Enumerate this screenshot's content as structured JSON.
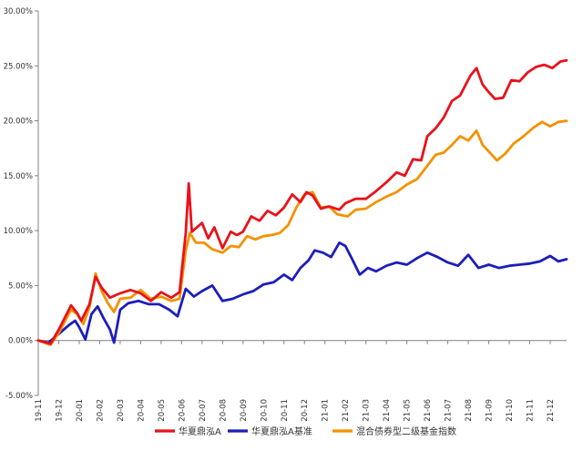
{
  "chart_data": {
    "type": "line",
    "title": "",
    "xlabel": "",
    "ylabel": "",
    "ylim": [
      -5,
      30
    ],
    "y_ticks": [
      -5,
      0,
      5,
      10,
      15,
      20,
      25,
      30
    ],
    "y_tick_format": "percent_2dp",
    "grid": false,
    "legend_position": "bottom",
    "x_tick_labels": [
      "19-11",
      "19-12",
      "20-01",
      "20-02",
      "20-03",
      "20-04",
      "20-05",
      "20-06",
      "20-07",
      "20-08",
      "20-09",
      "20-10",
      "20-11",
      "20-12",
      "21-01",
      "21-02",
      "21-03",
      "21-04",
      "21-05",
      "21-06",
      "21-07",
      "21-08",
      "21-09",
      "21-10",
      "21-11",
      "21-12"
    ],
    "x_range_months": [
      0,
      25.8
    ],
    "series": [
      {
        "name": "华夏鼎泓A",
        "color": "#e8121b",
        "points": [
          [
            0,
            0
          ],
          [
            0.6,
            -0.3
          ],
          [
            1,
            1.0
          ],
          [
            1.6,
            3.2
          ],
          [
            1.9,
            2.5
          ],
          [
            2.1,
            1.8
          ],
          [
            2.5,
            3.3
          ],
          [
            2.8,
            5.8
          ],
          [
            3.1,
            4.8
          ],
          [
            3.5,
            3.9
          ],
          [
            4,
            4.3
          ],
          [
            4.5,
            4.6
          ],
          [
            5,
            4.3
          ],
          [
            5.5,
            3.6
          ],
          [
            6,
            4.4
          ],
          [
            6.5,
            3.9
          ],
          [
            6.9,
            4.4
          ],
          [
            7.2,
            9.8
          ],
          [
            7.35,
            14.3
          ],
          [
            7.5,
            9.9
          ],
          [
            8,
            10.7
          ],
          [
            8.3,
            9.3
          ],
          [
            8.6,
            10.3
          ],
          [
            9,
            8.4
          ],
          [
            9.4,
            9.9
          ],
          [
            9.7,
            9.6
          ],
          [
            10,
            9.9
          ],
          [
            10.4,
            11.3
          ],
          [
            10.8,
            10.9
          ],
          [
            11.2,
            11.8
          ],
          [
            11.6,
            11.4
          ],
          [
            12,
            12.1
          ],
          [
            12.4,
            13.3
          ],
          [
            12.8,
            12.6
          ],
          [
            13.1,
            13.5
          ],
          [
            13.4,
            13.2
          ],
          [
            13.8,
            12.0
          ],
          [
            14.2,
            12.2
          ],
          [
            14.7,
            11.9
          ],
          [
            15,
            12.5
          ],
          [
            15.5,
            12.9
          ],
          [
            16,
            12.9
          ],
          [
            16.5,
            13.6
          ],
          [
            17,
            14.4
          ],
          [
            17.5,
            15.3
          ],
          [
            17.9,
            15.0
          ],
          [
            18.3,
            16.5
          ],
          [
            18.7,
            16.4
          ],
          [
            19,
            18.6
          ],
          [
            19.4,
            19.3
          ],
          [
            19.8,
            20.3
          ],
          [
            20.2,
            21.8
          ],
          [
            20.6,
            22.3
          ],
          [
            21.1,
            24.1
          ],
          [
            21.4,
            24.8
          ],
          [
            21.7,
            23.3
          ],
          [
            22,
            22.6
          ],
          [
            22.3,
            22.0
          ],
          [
            22.7,
            22.1
          ],
          [
            23.1,
            23.7
          ],
          [
            23.5,
            23.6
          ],
          [
            23.9,
            24.4
          ],
          [
            24.3,
            24.9
          ],
          [
            24.7,
            25.1
          ],
          [
            25.1,
            24.8
          ],
          [
            25.5,
            25.4
          ],
          [
            25.8,
            25.5
          ]
        ]
      },
      {
        "name": "华夏鼎泓A基准",
        "color": "#1c1eba",
        "points": [
          [
            0,
            0
          ],
          [
            0.5,
            -0.2
          ],
          [
            1,
            0.6
          ],
          [
            1.5,
            1.4
          ],
          [
            1.8,
            1.8
          ],
          [
            2,
            1.2
          ],
          [
            2.3,
            0.1
          ],
          [
            2.6,
            2.4
          ],
          [
            2.9,
            3.1
          ],
          [
            3.2,
            2.0
          ],
          [
            3.5,
            1.0
          ],
          [
            3.7,
            -0.2
          ],
          [
            4,
            2.8
          ],
          [
            4.4,
            3.4
          ],
          [
            4.9,
            3.6
          ],
          [
            5.4,
            3.3
          ],
          [
            5.9,
            3.3
          ],
          [
            6.4,
            2.8
          ],
          [
            6.8,
            2.2
          ],
          [
            7.2,
            4.7
          ],
          [
            7.6,
            4.0
          ],
          [
            8,
            4.5
          ],
          [
            8.5,
            5.0
          ],
          [
            9,
            3.6
          ],
          [
            9.5,
            3.8
          ],
          [
            10,
            4.2
          ],
          [
            10.5,
            4.5
          ],
          [
            11,
            5.1
          ],
          [
            11.5,
            5.3
          ],
          [
            12,
            6.0
          ],
          [
            12.4,
            5.5
          ],
          [
            12.8,
            6.6
          ],
          [
            13.2,
            7.3
          ],
          [
            13.5,
            8.2
          ],
          [
            13.9,
            8.0
          ],
          [
            14.3,
            7.6
          ],
          [
            14.7,
            8.9
          ],
          [
            15,
            8.6
          ],
          [
            15.3,
            7.5
          ],
          [
            15.7,
            6.0
          ],
          [
            16.1,
            6.6
          ],
          [
            16.5,
            6.3
          ],
          [
            17,
            6.8
          ],
          [
            17.5,
            7.1
          ],
          [
            18,
            6.9
          ],
          [
            18.5,
            7.5
          ],
          [
            19,
            8.0
          ],
          [
            19.5,
            7.6
          ],
          [
            20,
            7.1
          ],
          [
            20.5,
            6.8
          ],
          [
            21,
            7.8
          ],
          [
            21.5,
            6.6
          ],
          [
            22,
            6.9
          ],
          [
            22.5,
            6.6
          ],
          [
            23,
            6.8
          ],
          [
            23.5,
            6.9
          ],
          [
            24,
            7.0
          ],
          [
            24.5,
            7.2
          ],
          [
            25,
            7.7
          ],
          [
            25.4,
            7.2
          ],
          [
            25.8,
            7.4
          ]
        ]
      },
      {
        "name": "混合债券型二级基金指数",
        "color": "#f39200",
        "points": [
          [
            0,
            0
          ],
          [
            0.6,
            -0.4
          ],
          [
            1,
            0.7
          ],
          [
            1.6,
            2.8
          ],
          [
            1.9,
            2.4
          ],
          [
            2.2,
            1.5
          ],
          [
            2.5,
            3.0
          ],
          [
            2.8,
            6.1
          ],
          [
            3.1,
            4.5
          ],
          [
            3.4,
            3.4
          ],
          [
            3.7,
            2.6
          ],
          [
            4,
            3.8
          ],
          [
            4.5,
            3.9
          ],
          [
            5,
            4.6
          ],
          [
            5.5,
            3.8
          ],
          [
            6,
            4.0
          ],
          [
            6.5,
            3.6
          ],
          [
            6.9,
            3.8
          ],
          [
            7.2,
            8.2
          ],
          [
            7.4,
            9.8
          ],
          [
            7.7,
            8.9
          ],
          [
            8.1,
            8.9
          ],
          [
            8.5,
            8.3
          ],
          [
            9,
            8.0
          ],
          [
            9.4,
            8.6
          ],
          [
            9.8,
            8.5
          ],
          [
            10.2,
            9.5
          ],
          [
            10.6,
            9.2
          ],
          [
            11,
            9.5
          ],
          [
            11.4,
            9.6
          ],
          [
            11.8,
            9.8
          ],
          [
            12.2,
            10.5
          ],
          [
            12.6,
            12.1
          ],
          [
            13,
            13.3
          ],
          [
            13.4,
            13.5
          ],
          [
            13.8,
            12.1
          ],
          [
            14.2,
            12.2
          ],
          [
            14.6,
            11.5
          ],
          [
            15.1,
            11.3
          ],
          [
            15.5,
            11.9
          ],
          [
            16,
            12.0
          ],
          [
            16.5,
            12.6
          ],
          [
            17,
            13.1
          ],
          [
            17.5,
            13.5
          ],
          [
            18,
            14.2
          ],
          [
            18.5,
            14.7
          ],
          [
            19,
            15.9
          ],
          [
            19.4,
            16.9
          ],
          [
            19.8,
            17.1
          ],
          [
            20.2,
            17.8
          ],
          [
            20.6,
            18.6
          ],
          [
            21,
            18.2
          ],
          [
            21.4,
            19.1
          ],
          [
            21.7,
            17.8
          ],
          [
            22,
            17.2
          ],
          [
            22.4,
            16.4
          ],
          [
            22.8,
            17.0
          ],
          [
            23.2,
            17.9
          ],
          [
            23.7,
            18.6
          ],
          [
            24.2,
            19.4
          ],
          [
            24.6,
            19.9
          ],
          [
            25,
            19.5
          ],
          [
            25.4,
            19.9
          ],
          [
            25.8,
            20.0
          ]
        ]
      }
    ]
  }
}
